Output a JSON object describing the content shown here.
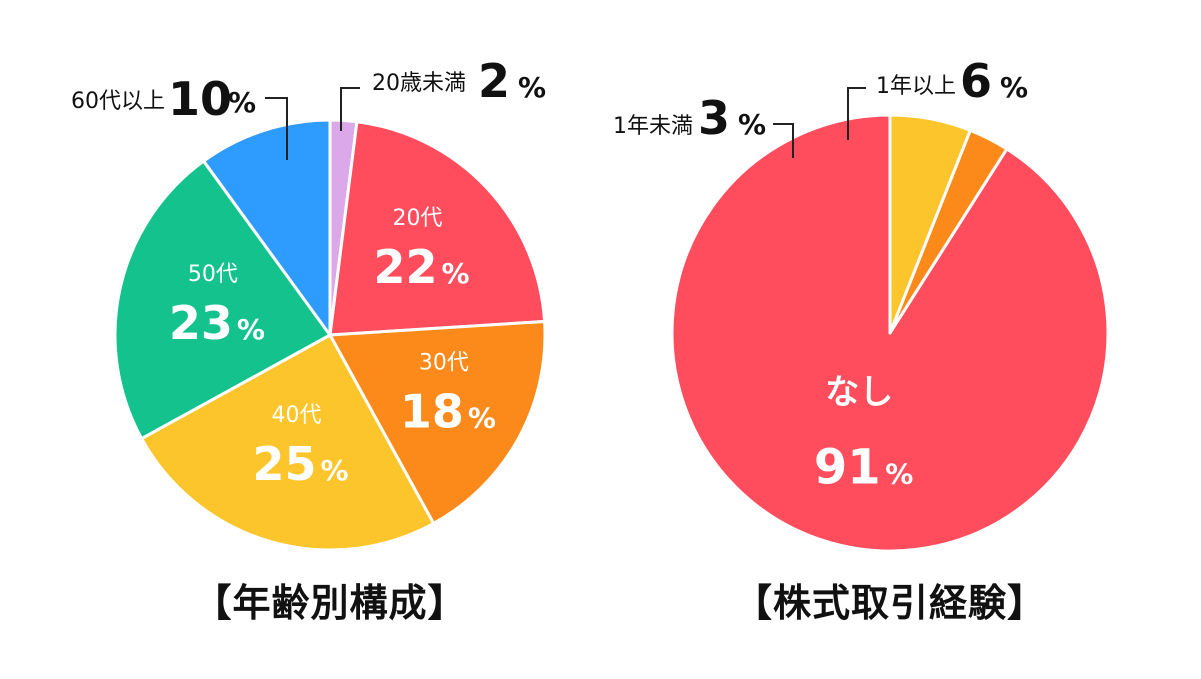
{
  "chart_data": [
    {
      "type": "pie",
      "title": "【年齢別構成】",
      "start": "top",
      "direction": "clockwise",
      "slices": [
        {
          "name": "20歳未満",
          "value": 2,
          "label": "2",
          "pct": "%",
          "color": "#dba8ea",
          "label_mode": "outside"
        },
        {
          "name": "20代",
          "value": 22,
          "label": "22",
          "pct": "%",
          "color": "#ff4d5e",
          "label_mode": "inside"
        },
        {
          "name": "30代",
          "value": 18,
          "label": "18",
          "pct": "%",
          "color": "#fb8a1a",
          "label_mode": "inside"
        },
        {
          "name": "40代",
          "value": 25,
          "label": "25",
          "pct": "%",
          "color": "#fdc52c",
          "label_mode": "inside"
        },
        {
          "name": "50代",
          "value": 23,
          "label": "23",
          "pct": "%",
          "color": "#13c28d",
          "label_mode": "inside"
        },
        {
          "name": "60代以上",
          "value": 10,
          "label": "10",
          "pct": "%",
          "color": "#2e9cff",
          "label_mode": "outside"
        }
      ]
    },
    {
      "type": "pie",
      "title": "【株式取引経験】",
      "start": "top",
      "direction": "counterclockwise",
      "slices": [
        {
          "name": "なし",
          "value": 91,
          "label": "91",
          "pct": "%",
          "color": "#ff4d5e",
          "label_mode": "inside"
        },
        {
          "name": "1年未満",
          "value": 3,
          "label": "3",
          "pct": "%",
          "color": "#fb8a1a",
          "label_mode": "outside"
        },
        {
          "name": "1年以上",
          "value": 6,
          "label": "6",
          "pct": "%",
          "color": "#fdc52c",
          "label_mode": "outside"
        }
      ]
    }
  ]
}
